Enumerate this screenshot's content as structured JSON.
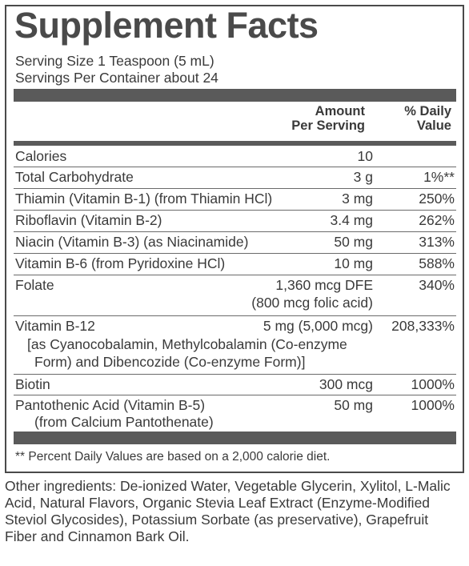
{
  "title": "Supplement Facts",
  "serving_size": "Serving Size 1 Teaspoon (5 mL)",
  "servings_per_container": "Servings Per Container about 24",
  "headers": {
    "amount_line1": "Amount",
    "amount_line2": "Per Serving",
    "dv_line1": "% Daily",
    "dv_line2": "Value"
  },
  "rows": [
    {
      "name": "Calories",
      "amount": "10",
      "dv": ""
    },
    {
      "name": "Total Carbohydrate",
      "amount": "3 g",
      "dv": "1%**"
    },
    {
      "name": "Thiamin (Vitamin B-1) (from Thiamin HCl)",
      "amount": "3 mg",
      "dv": "250%"
    },
    {
      "name": "Riboflavin (Vitamin B-2)",
      "amount": "3.4 mg",
      "dv": "262%"
    },
    {
      "name": "Niacin (Vitamin B-3) (as Niacinamide)",
      "amount": "50 mg",
      "dv": "313%"
    },
    {
      "name": "Vitamin B-6 (from Pyridoxine HCl)",
      "amount": "10 mg",
      "dv": "588%"
    },
    {
      "name": "Folate",
      "amount": "1,360 mcg DFE",
      "amount_line2": "(800 mcg folic acid)",
      "dv": "340%"
    },
    {
      "name": "Vitamin B-12",
      "amount": "5 mg (5,000 mcg)",
      "dv": "208,333%",
      "sub1": "[as Cyanocobalamin, Methylcobalamin (Co-enzyme",
      "sub2": "Form) and Dibencozide (Co-enzyme Form)]"
    },
    {
      "name": "Biotin",
      "amount": "300 mcg",
      "dv": "1000%"
    },
    {
      "name": "Pantothenic Acid (Vitamin B-5)",
      "name_line2": "(from Calcium Pantothenate)",
      "amount": "50 mg",
      "dv": "1000%"
    }
  ],
  "footnote": "** Percent Daily Values are based on a 2,000 calorie diet.",
  "other_ingredients": "Other ingredients: De-ionized Water, Vegetable Glycerin, Xylitol, L-Malic Acid, Natural Flavors, Organic Stevia Leaf Extract (Enzyme-Modified Steviol Glycosides), Potassium Sorbate (as preservative), Grapefruit Fiber and Cinnamon Bark Oil."
}
